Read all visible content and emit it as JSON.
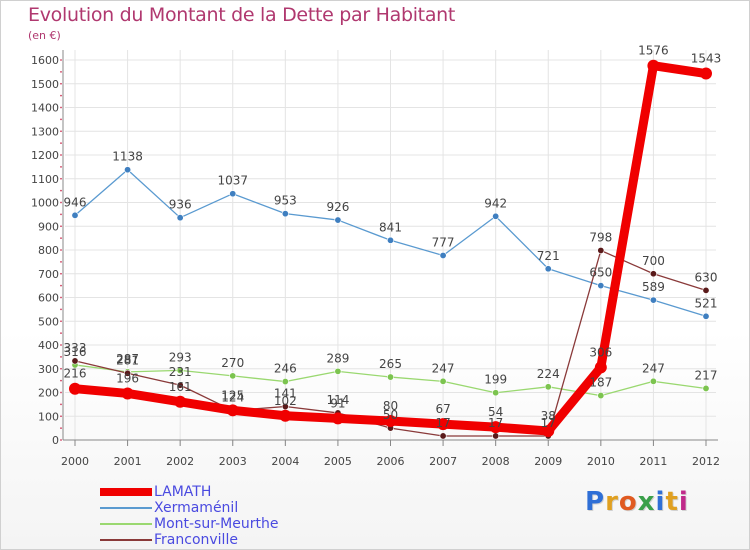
{
  "colors": {
    "title": "#b0386f",
    "axis": "#888888",
    "grid": "#e4e4e4",
    "label": "#444444",
    "legend_text": "#4a4ae0"
  },
  "logo": {
    "text": "Proxiti",
    "letters": [
      {
        "ch": "P",
        "color": "#2f6fd6"
      },
      {
        "ch": "r",
        "color": "#e0a020"
      },
      {
        "ch": "o",
        "color": "#e05a20"
      },
      {
        "ch": "x",
        "color": "#3aa04a"
      },
      {
        "ch": "i",
        "color": "#2f6fd6"
      },
      {
        "ch": "t",
        "color": "#e0a020"
      },
      {
        "ch": "i",
        "color": "#c02a8a"
      }
    ]
  },
  "chart_data": {
    "type": "line",
    "title": "Evolution du Montant de la Dette par Habitant",
    "subtitle": "(en €)",
    "xlabel": "",
    "ylabel": "",
    "ylim": [
      0,
      1600
    ],
    "yticks": [
      0,
      100,
      200,
      300,
      400,
      500,
      600,
      700,
      800,
      900,
      1000,
      1100,
      1200,
      1300,
      1400,
      1500,
      1600
    ],
    "categories": [
      "2000",
      "2001",
      "2002",
      "2003",
      "2004",
      "2005",
      "2006",
      "2007",
      "2008",
      "2009",
      "2010",
      "2011",
      "2012"
    ],
    "grid": true,
    "legend_position": "bottom-left",
    "series": [
      {
        "name": "Xermaménil",
        "color": "#5a9ad0",
        "dot": "#3f7fc0",
        "values": [
          946,
          1138,
          936,
          1037,
          953,
          926,
          841,
          777,
          942,
          721,
          650,
          589,
          521
        ]
      },
      {
        "name": "Mont-sur-Meurthe",
        "color": "#9ad870",
        "dot": "#7cc44f",
        "values": [
          316,
          287,
          293,
          270,
          246,
          289,
          265,
          247,
          199,
          224,
          187,
          247,
          217
        ]
      },
      {
        "name": "Franconville",
        "color": "#8a3a3a",
        "dot": "#5a1a1a",
        "values": [
          333,
          281,
          231,
          124,
          141,
          114,
          50,
          17,
          17,
          17,
          798,
          700,
          630
        ]
      },
      {
        "name": "LAMATH",
        "color": "#f00000",
        "dot": "#f00000",
        "thick": true,
        "values": [
          216,
          196,
          161,
          125,
          102,
          91,
          80,
          67,
          54,
          38,
          306,
          1576,
          1543
        ]
      }
    ]
  }
}
